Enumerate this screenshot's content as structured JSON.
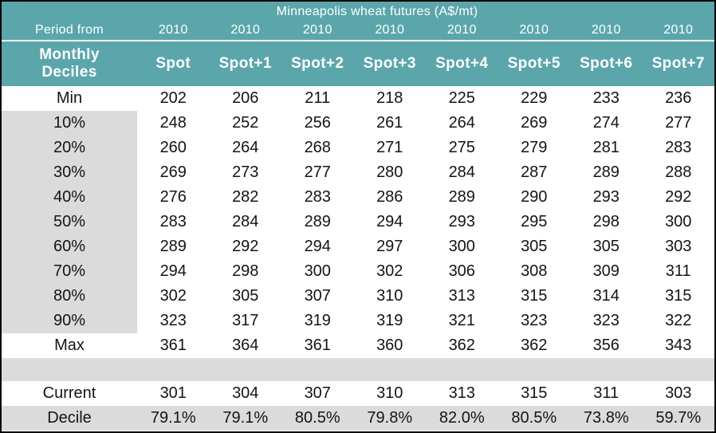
{
  "header": {
    "title": "Minneapolis wheat futures (A$/mt)",
    "period_from_label": "Period from",
    "year_labels": [
      "2010",
      "2010",
      "2010",
      "2010",
      "2010",
      "2010",
      "2010",
      "2010"
    ],
    "deciles_label_line1": "Monthly",
    "deciles_label_line2": "Deciles",
    "column_headers": [
      "Spot",
      "Spot+1",
      "Spot+2",
      "Spot+3",
      "Spot+4",
      "Spot+5",
      "Spot+6",
      "Spot+7"
    ]
  },
  "table": {
    "rows": [
      {
        "label": "Min",
        "values": [
          "202",
          "206",
          "211",
          "218",
          "225",
          "229",
          "233",
          "236"
        ],
        "label_shaded": false
      },
      {
        "label": "10%",
        "values": [
          "248",
          "252",
          "256",
          "261",
          "264",
          "269",
          "274",
          "277"
        ],
        "label_shaded": true
      },
      {
        "label": "20%",
        "values": [
          "260",
          "264",
          "268",
          "271",
          "275",
          "279",
          "281",
          "283"
        ],
        "label_shaded": true
      },
      {
        "label": "30%",
        "values": [
          "269",
          "273",
          "277",
          "280",
          "284",
          "287",
          "289",
          "288"
        ],
        "label_shaded": true
      },
      {
        "label": "40%",
        "values": [
          "276",
          "282",
          "283",
          "286",
          "289",
          "290",
          "293",
          "292"
        ],
        "label_shaded": true
      },
      {
        "label": "50%",
        "values": [
          "283",
          "284",
          "289",
          "294",
          "293",
          "295",
          "298",
          "300"
        ],
        "label_shaded": true
      },
      {
        "label": "60%",
        "values": [
          "289",
          "292",
          "294",
          "297",
          "300",
          "305",
          "305",
          "303"
        ],
        "label_shaded": true
      },
      {
        "label": "70%",
        "values": [
          "294",
          "298",
          "300",
          "302",
          "306",
          "308",
          "309",
          "311"
        ],
        "label_shaded": true
      },
      {
        "label": "80%",
        "values": [
          "302",
          "305",
          "307",
          "310",
          "313",
          "315",
          "314",
          "315"
        ],
        "label_shaded": true
      },
      {
        "label": "90%",
        "values": [
          "323",
          "317",
          "319",
          "319",
          "321",
          "323",
          "323",
          "322"
        ],
        "label_shaded": true
      },
      {
        "label": "Max",
        "values": [
          "361",
          "364",
          "361",
          "360",
          "362",
          "362",
          "356",
          "343"
        ],
        "label_shaded": false
      },
      {
        "label": "",
        "values": [
          "",
          "",
          "",
          "",
          "",
          "",
          "",
          ""
        ],
        "spacer": true
      },
      {
        "label": "Current",
        "values": [
          "301",
          "304",
          "307",
          "310",
          "313",
          "315",
          "311",
          "303"
        ],
        "label_shaded": false
      },
      {
        "label": "Decile",
        "values": [
          "79.1%",
          "79.1%",
          "80.5%",
          "79.8%",
          "82.0%",
          "80.5%",
          "73.8%",
          "59.7%"
        ],
        "row_shaded": true
      }
    ]
  },
  "colors": {
    "header_teal": "#5BA6AB",
    "label_gray": "#DBDBDB",
    "body_text": "#141414",
    "header_text": "#FFFFFF",
    "border_black": "#000000"
  },
  "chart_data": {
    "type": "table",
    "title": "Minneapolis wheat futures (A$/mt)",
    "period_from": "2010",
    "categories": [
      "Spot",
      "Spot+1",
      "Spot+2",
      "Spot+3",
      "Spot+4",
      "Spot+5",
      "Spot+6",
      "Spot+7"
    ],
    "series": [
      {
        "name": "Min",
        "values": [
          202,
          206,
          211,
          218,
          225,
          229,
          233,
          236
        ]
      },
      {
        "name": "10%",
        "values": [
          248,
          252,
          256,
          261,
          264,
          269,
          274,
          277
        ]
      },
      {
        "name": "20%",
        "values": [
          260,
          264,
          268,
          271,
          275,
          279,
          281,
          283
        ]
      },
      {
        "name": "30%",
        "values": [
          269,
          273,
          277,
          280,
          284,
          287,
          289,
          288
        ]
      },
      {
        "name": "40%",
        "values": [
          276,
          282,
          283,
          286,
          289,
          290,
          293,
          292
        ]
      },
      {
        "name": "50%",
        "values": [
          283,
          284,
          289,
          294,
          293,
          295,
          298,
          300
        ]
      },
      {
        "name": "60%",
        "values": [
          289,
          292,
          294,
          297,
          300,
          305,
          305,
          303
        ]
      },
      {
        "name": "70%",
        "values": [
          294,
          298,
          300,
          302,
          306,
          308,
          309,
          311
        ]
      },
      {
        "name": "80%",
        "values": [
          302,
          305,
          307,
          310,
          313,
          315,
          314,
          315
        ]
      },
      {
        "name": "90%",
        "values": [
          323,
          317,
          319,
          319,
          321,
          323,
          323,
          322
        ]
      },
      {
        "name": "Max",
        "values": [
          361,
          364,
          361,
          360,
          362,
          362,
          356,
          343
        ]
      },
      {
        "name": "Current",
        "values": [
          301,
          304,
          307,
          310,
          313,
          315,
          311,
          303
        ]
      },
      {
        "name": "Decile",
        "values": [
          "79.1%",
          "79.1%",
          "80.5%",
          "79.8%",
          "82.0%",
          "80.5%",
          "73.8%",
          "59.7%"
        ]
      }
    ]
  }
}
